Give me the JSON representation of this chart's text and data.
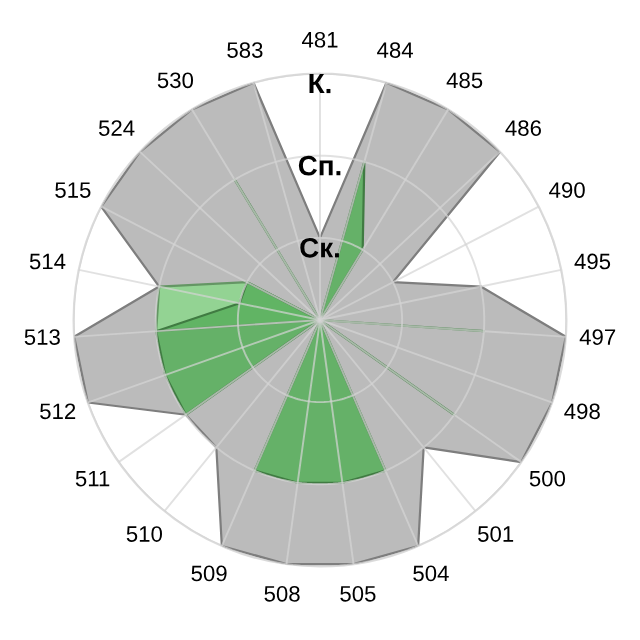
{
  "chart_data": {
    "type": "radar",
    "categories": [
      "481",
      "484",
      "485",
      "486",
      "490",
      "495",
      "497",
      "498",
      "500",
      "501",
      "504",
      "505",
      "508",
      "509",
      "510",
      "511",
      "512",
      "513",
      "514",
      "515",
      "524",
      "530",
      "583"
    ],
    "ylim": [
      0,
      3
    ],
    "yticks": [
      {
        "value": 1,
        "label": "Ск."
      },
      {
        "value": 2,
        "label": "Сп."
      },
      {
        "value": 3,
        "label": "К."
      }
    ],
    "grid": true,
    "series": [
      {
        "color": "#b4b4b4",
        "values": [
          1,
          3,
          3,
          3,
          1,
          2,
          3,
          3,
          3,
          2,
          3,
          3,
          3,
          3,
          2,
          2,
          3,
          3,
          2,
          3,
          3,
          3,
          3
        ]
      },
      {
        "color": "#8fd68f",
        "values": [
          0,
          0,
          0,
          0,
          0,
          0,
          0,
          0,
          0,
          0,
          0,
          0,
          0,
          0,
          0,
          0,
          0,
          2,
          2,
          1,
          0,
          0,
          0
        ]
      },
      {
        "color": "#5cb05f",
        "values": [
          0,
          2,
          1,
          0,
          0,
          0,
          2,
          0,
          2,
          0,
          2,
          2,
          2,
          2,
          0,
          2,
          2,
          2,
          1,
          1,
          0,
          2,
          0
        ]
      }
    ]
  }
}
